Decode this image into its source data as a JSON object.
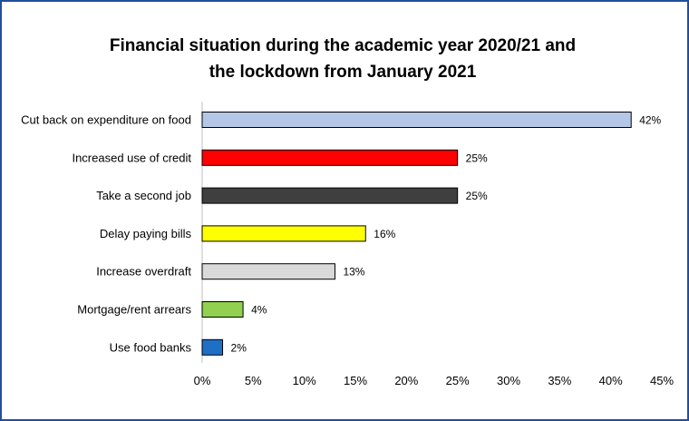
{
  "chart_data": {
    "type": "bar",
    "orientation": "horizontal",
    "title_lines": [
      "Financial situation during the academic year 2020/21 and",
      "the lockdown from January 2021"
    ],
    "categories": [
      "Cut back on expenditure on food",
      "Increased use of credit",
      "Take a second job",
      "Delay paying bills",
      "Increase overdraft",
      "Mortgage/rent arrears",
      "Use food banks"
    ],
    "values": [
      42,
      25,
      25,
      16,
      13,
      4,
      2
    ],
    "value_labels": [
      "42%",
      "25%",
      "25%",
      "16%",
      "13%",
      "4%",
      "2%"
    ],
    "colors": [
      "#b4c7e7",
      "#ff0000",
      "#3f3f3f",
      "#ffff00",
      "#d9d9d9",
      "#92d050",
      "#1f6fc6"
    ],
    "xlim": [
      0,
      45
    ],
    "xticks": [
      0,
      5,
      10,
      15,
      20,
      25,
      30,
      35,
      40,
      45
    ],
    "xtick_labels": [
      "0%",
      "5%",
      "10%",
      "15%",
      "20%",
      "25%",
      "30%",
      "35%",
      "40%",
      "45%"
    ],
    "xlabel": "",
    "ylabel": "",
    "grid": false,
    "legend": "none"
  }
}
